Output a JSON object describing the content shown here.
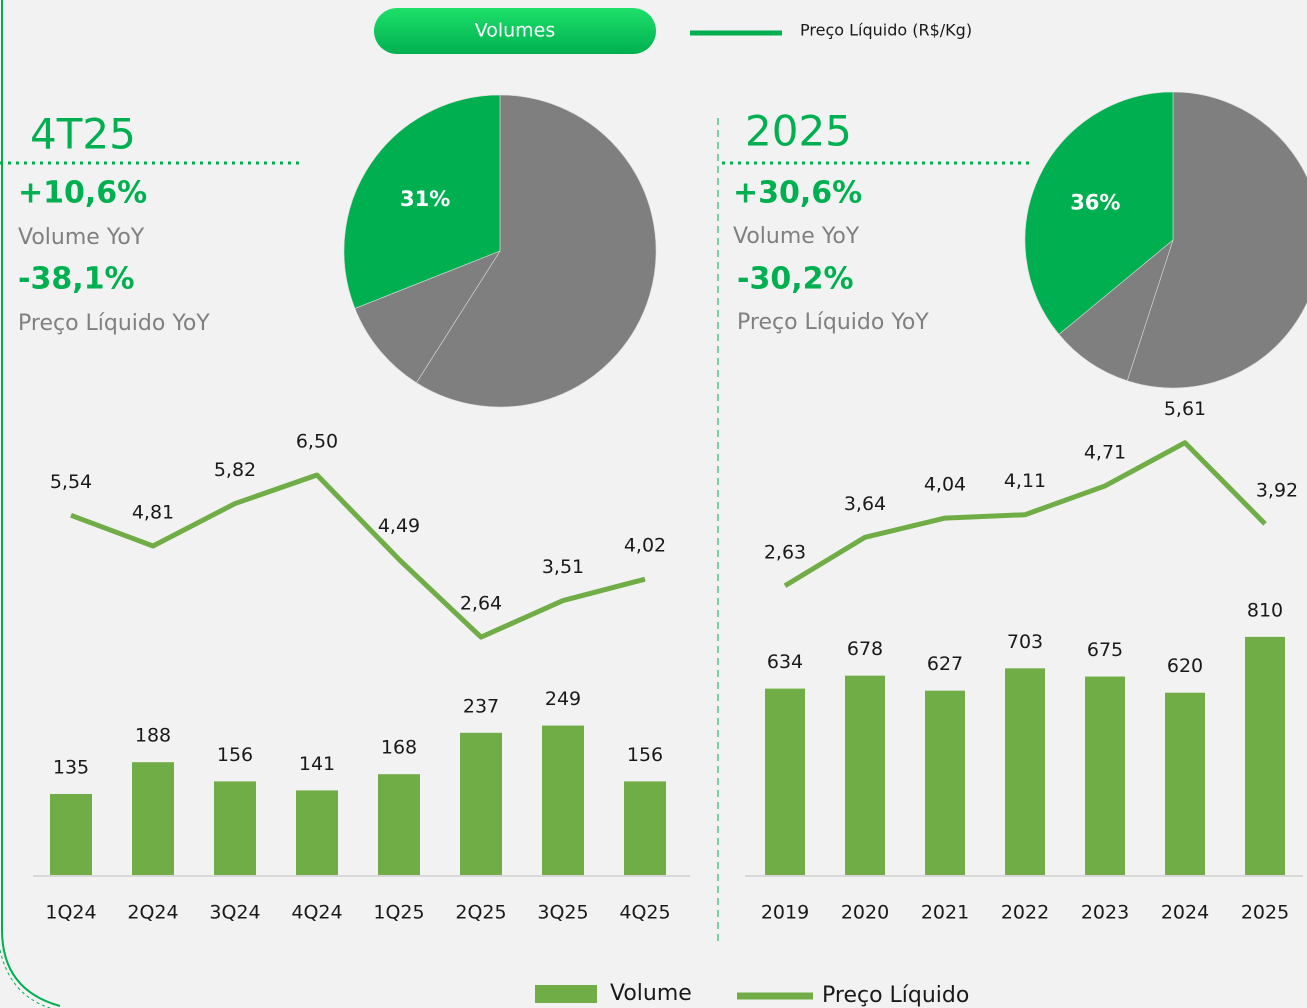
{
  "header": {
    "button": "Volumes",
    "line_legend": "Preço Líquido (R$/Kg)"
  },
  "panels": [
    {
      "period": "4T25",
      "kpis": [
        {
          "value": "+10,6%",
          "label": "Volume YoY"
        },
        {
          "value": "-38,1%",
          "label": "Preço Líquido YoY"
        }
      ]
    },
    {
      "period": "2025",
      "kpis": [
        {
          "value": "+30,6%",
          "label": "Volume YoY"
        },
        {
          "value": "-30,2%",
          "label": "Preço Líquido YoY"
        }
      ]
    }
  ],
  "chart_data": [
    {
      "type": "pie",
      "values": [
        59,
        10,
        31
      ],
      "value_labels": [
        null,
        null,
        "31%"
      ],
      "colors": [
        "#7f7f7f",
        "#7f7f7f",
        "#00b050"
      ]
    },
    {
      "type": "bar_line",
      "categories": [
        "1Q24",
        "2Q24",
        "3Q24",
        "4Q24",
        "1Q25",
        "2Q25",
        "3Q25",
        "4Q25"
      ],
      "series": [
        {
          "name": "Volume",
          "color": "#70ad47",
          "values": [
            135,
            188,
            156,
            141,
            168,
            237,
            249,
            156
          ]
        },
        {
          "name": "Preço Líquido",
          "color": "#70ad47",
          "values": [
            5.54,
            4.81,
            5.82,
            6.5,
            4.49,
            2.64,
            3.51,
            4.02
          ],
          "value_labels": [
            "5,54",
            "4,81",
            "5,82",
            "6,50",
            "4,49",
            "2,64",
            "3,51",
            "4,02"
          ]
        }
      ]
    },
    {
      "type": "pie",
      "values": [
        55,
        9,
        36
      ],
      "value_labels": [
        null,
        null,
        "36%"
      ],
      "colors": [
        "#7f7f7f",
        "#7f7f7f",
        "#00b050"
      ]
    },
    {
      "type": "bar_line",
      "categories": [
        "2019",
        "2020",
        "2021",
        "2022",
        "2023",
        "2024",
        "2025"
      ],
      "series": [
        {
          "name": "Volume",
          "color": "#70ad47",
          "values": [
            634,
            678,
            627,
            703,
            675,
            620,
            810
          ]
        },
        {
          "name": "Preço Líquido",
          "color": "#70ad47",
          "values": [
            2.63,
            3.64,
            4.04,
            4.11,
            4.71,
            5.61,
            3.92
          ],
          "value_labels": [
            "2,63",
            "3,64",
            "4,04",
            "4,11",
            "4,71",
            "5,61",
            "3,92"
          ]
        }
      ]
    }
  ]
}
